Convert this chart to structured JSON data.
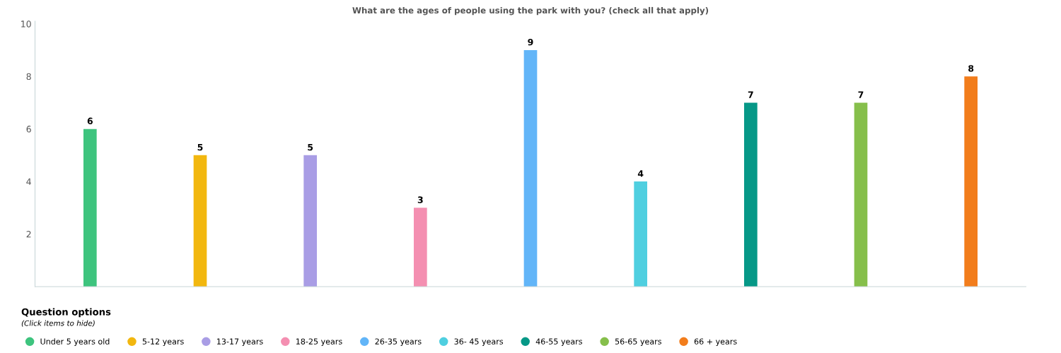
{
  "chart_data": {
    "type": "bar",
    "title": "What are the ages of people using the park with you? (check all that apply)",
    "categories": [
      null
    ],
    "series": [
      {
        "name": "Under 5 years old",
        "color": "#3ec47e",
        "values": [
          6
        ]
      },
      {
        "name": "5-12 years",
        "color": "#f2b70f",
        "values": [
          5
        ]
      },
      {
        "name": "13-17 years",
        "color": "#a99de5",
        "values": [
          5
        ]
      },
      {
        "name": "18-25 years",
        "color": "#f48fb1",
        "values": [
          3
        ]
      },
      {
        "name": "26-35 years",
        "color": "#62b5f8",
        "values": [
          9
        ]
      },
      {
        "name": "36- 45 years",
        "color": "#4fcfe0",
        "values": [
          4
        ]
      },
      {
        "name": "46-55 years",
        "color": "#069887",
        "values": [
          7
        ]
      },
      {
        "name": "56-65 years",
        "color": "#86bf4b",
        "values": [
          7
        ]
      },
      {
        "name": "66 + years",
        "color": "#f27d1c",
        "values": [
          8
        ]
      }
    ],
    "ylim": [
      0,
      10.1
    ],
    "yticks": [
      2,
      4,
      6,
      8,
      10
    ],
    "tick_labels": "y",
    "data_labels": true,
    "grid": false,
    "legend": "bottom left",
    "legend_title": "Question options",
    "annotations": [
      "(Click items to hide)"
    ]
  }
}
